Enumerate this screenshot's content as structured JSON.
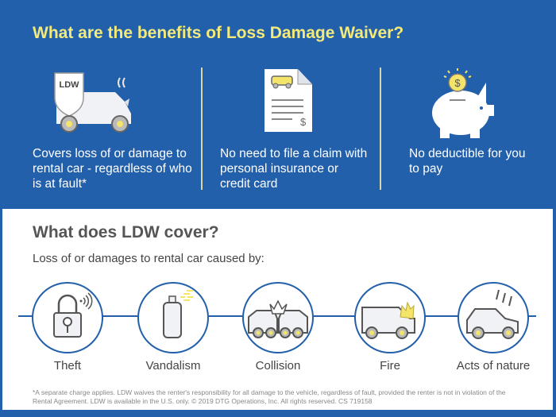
{
  "header": {
    "title": "What are the benefits of Loss Damage Waiver?"
  },
  "benefits": [
    {
      "icon": "ldw-shield-damaged-car-icon",
      "badge": "LDW",
      "text": "Covers loss of or damage to rental car - regardless of who is at fault*"
    },
    {
      "icon": "claim-document-icon",
      "symbol": "$",
      "text": "No need to file a claim with personal insurance or credit card"
    },
    {
      "icon": "piggy-bank-icon",
      "symbol": "$",
      "text": "No deductible for you to pay"
    }
  ],
  "coverage": {
    "title": "What does LDW cover?",
    "subtitle": "Loss of or damages to rental car caused by:",
    "items": [
      {
        "icon": "lock-icon",
        "label": "Theft"
      },
      {
        "icon": "spray-can-icon",
        "label": "Vandalism"
      },
      {
        "icon": "collision-icon",
        "label": "Collision"
      },
      {
        "icon": "car-fire-icon",
        "label": "Fire"
      },
      {
        "icon": "car-hail-icon",
        "label": "Acts of nature"
      }
    ]
  },
  "footnote": "*A separate charge applies. LDW waives the renter's responsibility for all damage to the vehicle, regardless of fault, provided the renter is not in violation of the Rental Agreement. LDW is available in the U.S. only. © 2019 DTG Operations, Inc. All rights reserved. CS 719158",
  "colors": {
    "blue": "#2360ab",
    "yellow": "#f3ea7c",
    "icon_yellow": "#f4e46a"
  }
}
